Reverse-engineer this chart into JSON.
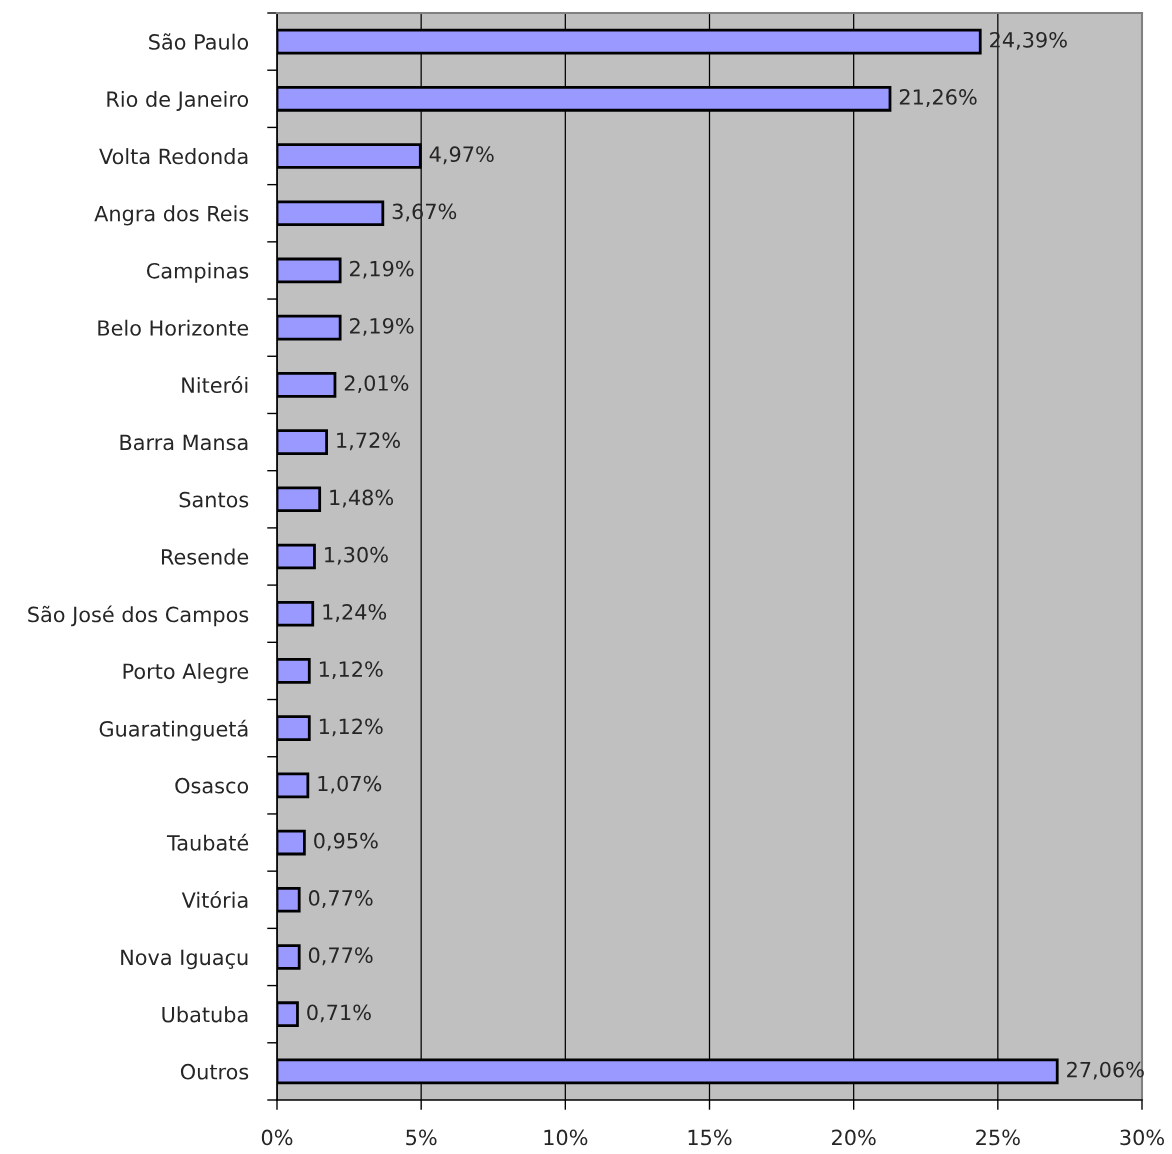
{
  "chart_data": {
    "type": "bar",
    "orientation": "horizontal",
    "categories": [
      "São Paulo",
      "Rio de Janeiro",
      "Volta Redonda",
      "Angra dos Reis",
      "Campinas",
      "Belo Horizonte",
      "Niterói",
      "Barra Mansa",
      "Santos",
      "Resende",
      "São José dos Campos",
      "Porto Alegre",
      "Guaratinguetá",
      "Osasco",
      "Taubaté",
      "Vitória",
      "Nova Iguaçu",
      "Ubatuba",
      "Outros"
    ],
    "values": [
      24.39,
      21.26,
      4.97,
      3.67,
      2.19,
      2.19,
      2.01,
      1.72,
      1.48,
      1.3,
      1.24,
      1.12,
      1.12,
      1.07,
      0.95,
      0.77,
      0.77,
      0.71,
      27.06
    ],
    "value_labels": [
      "24,39%",
      "21,26%",
      "4,97%",
      "3,67%",
      "2,19%",
      "2,19%",
      "2,01%",
      "1,72%",
      "1,48%",
      "1,30%",
      "1,24%",
      "1,12%",
      "1,12%",
      "1,07%",
      "0,95%",
      "0,77%",
      "0,77%",
      "0,71%",
      "27,06%"
    ],
    "color": "#9999ff",
    "xlim": [
      0,
      30
    ],
    "xticks": [
      {
        "value": 0,
        "label": "0%"
      },
      {
        "value": 5,
        "label": "5%"
      },
      {
        "value": 10,
        "label": "10%"
      },
      {
        "value": 15,
        "label": "15%"
      },
      {
        "value": 20,
        "label": "20%"
      },
      {
        "value": 25,
        "label": "25%"
      },
      {
        "value": 30,
        "label": "30%"
      }
    ],
    "grid": "x"
  }
}
